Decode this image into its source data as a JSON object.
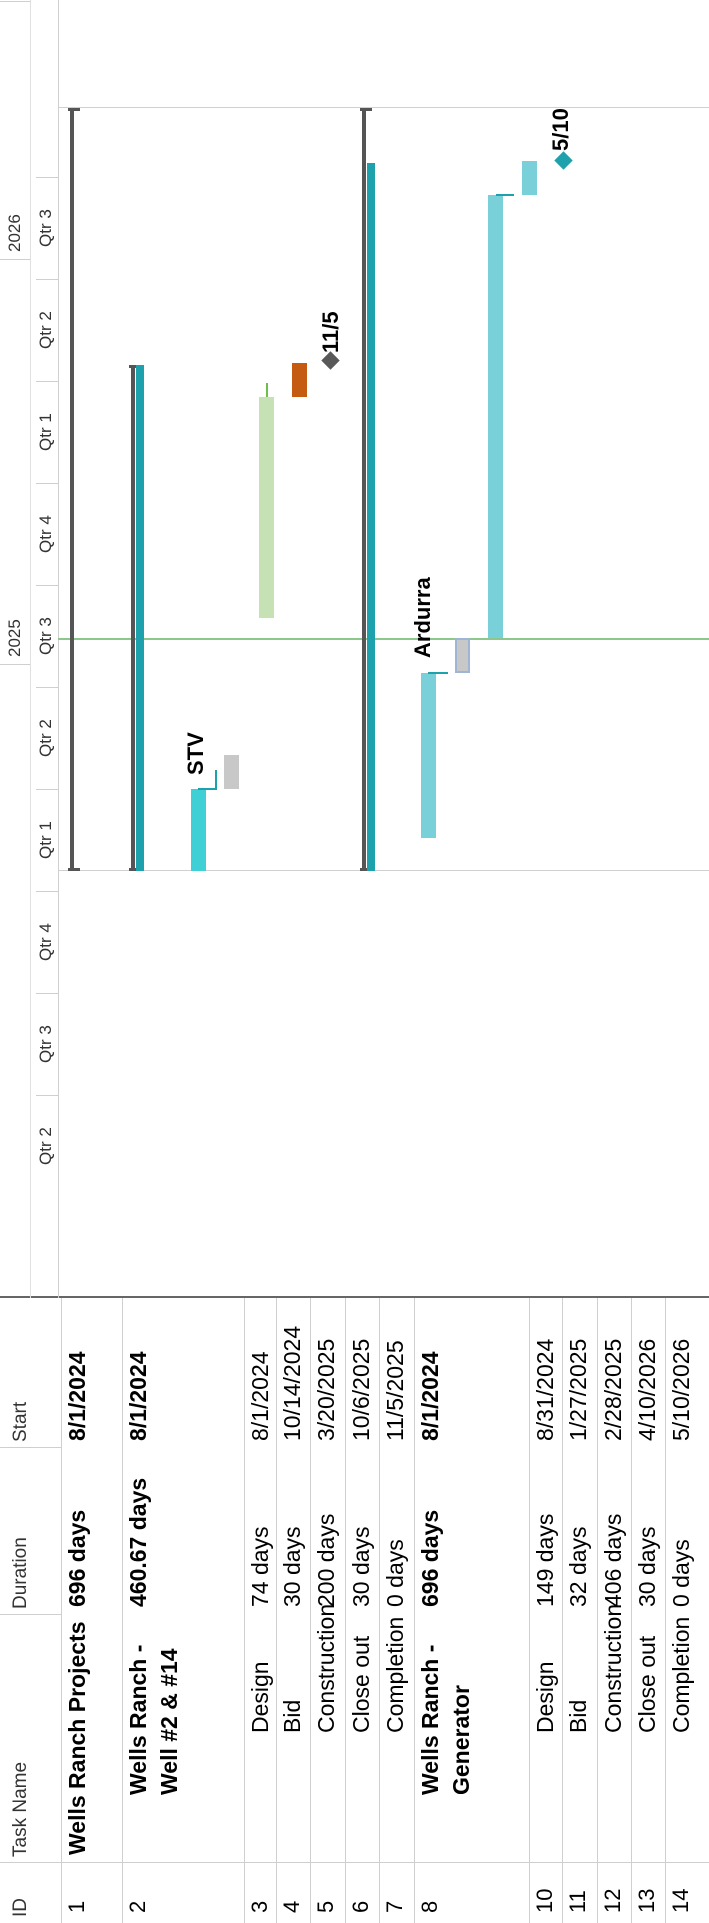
{
  "table": {
    "headers": {
      "id": "ID",
      "task": "Task Name",
      "duration": "Duration",
      "start": "Start"
    },
    "rows": [
      {
        "id": "1",
        "task": [
          "Wells Ranch Projects"
        ],
        "duration": "696 days",
        "start": "8/1/2024",
        "bold": true
      },
      {
        "id": "2",
        "task": [
          "Wells Ranch -",
          "Well #2 & #14"
        ],
        "duration": "460.67 days",
        "start": "8/1/2024",
        "bold": true
      },
      {
        "id": "3",
        "task": [
          "Design"
        ],
        "duration": "74 days",
        "start": "8/1/2024"
      },
      {
        "id": "4",
        "task": [
          "Bid"
        ],
        "duration": "30 days",
        "start": "10/14/2024"
      },
      {
        "id": "5",
        "task": [
          "Construction"
        ],
        "duration": "200 days",
        "start": "3/20/2025"
      },
      {
        "id": "6",
        "task": [
          "Close out"
        ],
        "duration": "30 days",
        "start": "10/6/2025"
      },
      {
        "id": "7",
        "task": [
          "Completion"
        ],
        "duration": "0 days",
        "start": "11/5/2025"
      },
      {
        "id": "8",
        "task": [
          "Wells Ranch -",
          "Generator"
        ],
        "duration": "696 days",
        "start": "8/1/2024",
        "bold": true
      },
      {
        "id": "10",
        "task": [
          "Design"
        ],
        "duration": "149 days",
        "start": "8/31/2024"
      },
      {
        "id": "11",
        "task": [
          "Bid"
        ],
        "duration": "32 days",
        "start": "1/27/2025"
      },
      {
        "id": "12",
        "task": [
          "Construction"
        ],
        "duration": "406 days",
        "start": "2/28/2025"
      },
      {
        "id": "13",
        "task": [
          "Close out"
        ],
        "duration": "30 days",
        "start": "4/10/2026"
      },
      {
        "id": "14",
        "task": [
          "Completion"
        ],
        "duration": "0 days",
        "start": "5/10/2026"
      }
    ]
  },
  "timescale": {
    "years": [
      "2025",
      "2026"
    ],
    "quarters": [
      "Qtr 2",
      "Qtr 3",
      "Qtr 4",
      "Qtr 1",
      "Qtr 2",
      "Qtr 3",
      "Qtr 4",
      "Qtr 1",
      "Qtr 2",
      "Qtr 3"
    ]
  },
  "bar_labels": {
    "stv": "STV",
    "completion_1": "11/5",
    "ardurra": "Ardurra",
    "completion_2": "5/10"
  },
  "colors": {
    "summary": "#555555",
    "teal": "#1da1ad",
    "light_teal": "#79d0d9",
    "bright_teal": "#3fd0d6",
    "light_green": "#c6e2b5",
    "orange": "#c55a11",
    "gray_bar": "#c8c8c8",
    "today_line": "#8cc88c",
    "milestone_gray": "#595959"
  }
}
